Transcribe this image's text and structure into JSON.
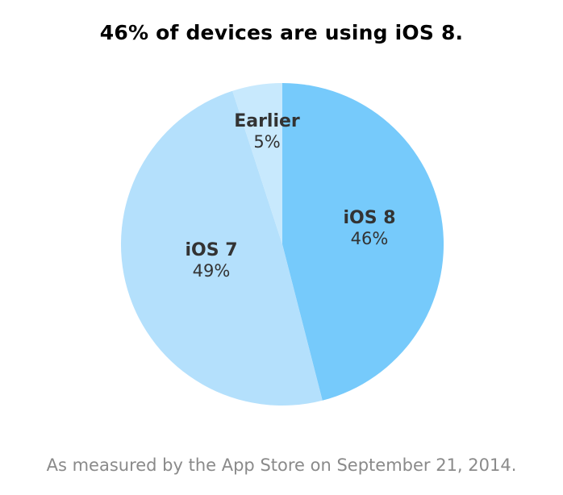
{
  "chart_data": {
    "type": "pie",
    "title": "46% of devices are using iOS 8.",
    "slices": [
      {
        "name": "iOS 8",
        "value": 46,
        "label": "46%",
        "color": "#76CAFB"
      },
      {
        "name": "iOS 7",
        "value": 49,
        "label": "49%",
        "color": "#B4E0FC"
      },
      {
        "name": "Earlier",
        "value": 5,
        "label": "5%",
        "color": "#C8E9FD"
      }
    ],
    "legend": "none",
    "label_color": "#333333"
  },
  "footnote": "As measured by the App Store on September 21, 2014."
}
